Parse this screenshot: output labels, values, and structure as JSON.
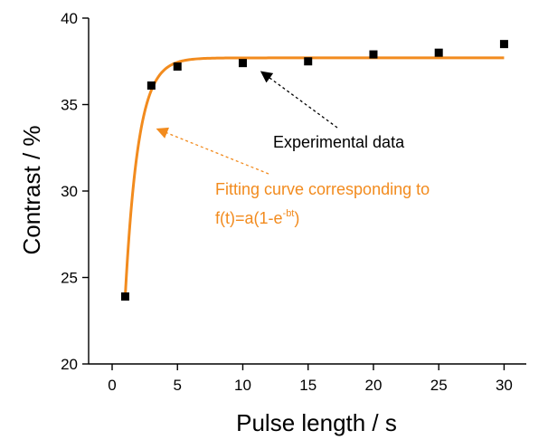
{
  "chart_data": {
    "type": "scatter",
    "xlabel": "Pulse length / s",
    "ylabel": "Contrast / %",
    "xlim": [
      -1.8,
      31.7
    ],
    "ylim": [
      20,
      40
    ],
    "xticks": [
      0,
      5,
      10,
      15,
      20,
      25,
      30
    ],
    "yticks": [
      20,
      25,
      30,
      35,
      40
    ],
    "grid": false,
    "series": [
      {
        "kind": "points",
        "color": "#000000",
        "x": [
          1,
          3,
          5,
          10,
          15,
          20,
          25,
          30
        ],
        "y": [
          23.9,
          36.1,
          37.2,
          37.4,
          37.5,
          37.9,
          38.0,
          38.5
        ]
      },
      {
        "kind": "fit",
        "color": "#f28b1e",
        "formula": "f(t)=a(1-e^(-bt))",
        "a": 37.7,
        "b": 1.0,
        "x_range": [
          1,
          30
        ]
      }
    ],
    "annotations": {
      "experimental": {
        "text": "Experimental data"
      },
      "fitting": {
        "line1": "Fitting curve corresponding to",
        "line2_main": "f(t)=a(1-e",
        "line2_sup": "-bt",
        "line2_end": ")"
      }
    }
  }
}
